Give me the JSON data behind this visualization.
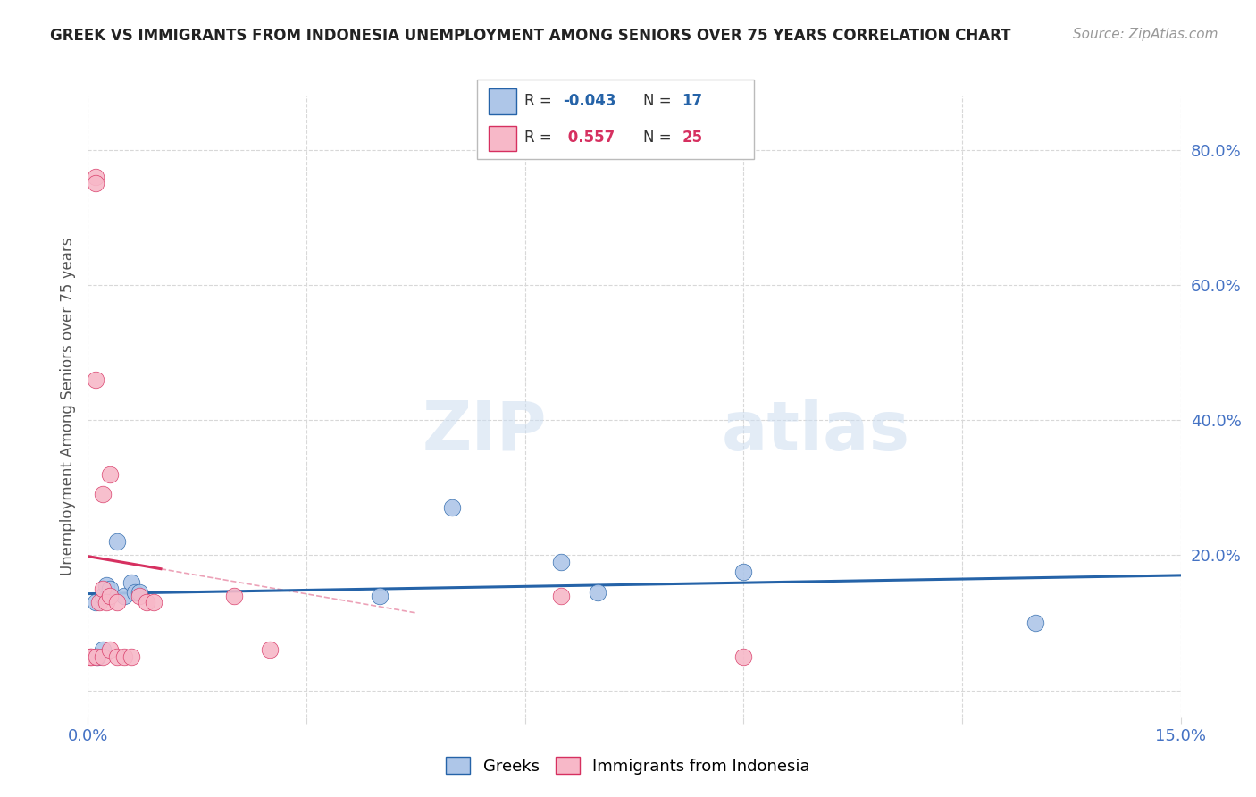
{
  "title": "GREEK VS IMMIGRANTS FROM INDONESIA UNEMPLOYMENT AMONG SENIORS OVER 75 YEARS CORRELATION CHART",
  "source": "Source: ZipAtlas.com",
  "ylabel": "Unemployment Among Seniors over 75 years",
  "background_color": "#ffffff",
  "watermark_zip": "ZIP",
  "watermark_atlas": "atlas",
  "greek_color": "#aec6e8",
  "greek_color_line": "#2563a8",
  "indonesia_color": "#f7b8c8",
  "indonesia_color_line": "#d63060",
  "R_greek": "-0.043",
  "N_greek": "17",
  "R_indonesia": "0.557",
  "N_indonesia": "25",
  "xlim": [
    0.0,
    0.15
  ],
  "ylim": [
    -0.04,
    0.88
  ],
  "ytick_vals": [
    0.0,
    0.2,
    0.4,
    0.6,
    0.8
  ],
  "ytick_labels": [
    "",
    "20.0%",
    "40.0%",
    "60.0%",
    "80.0%"
  ],
  "xtick_vals": [
    0.0,
    0.03,
    0.06,
    0.09,
    0.12,
    0.15
  ],
  "greek_x": [
    0.001,
    0.0013,
    0.002,
    0.002,
    0.0025,
    0.003,
    0.004,
    0.005,
    0.006,
    0.0065,
    0.007,
    0.04,
    0.05,
    0.065,
    0.07,
    0.09,
    0.13
  ],
  "greek_y": [
    0.13,
    0.05,
    0.06,
    0.14,
    0.155,
    0.15,
    0.22,
    0.14,
    0.16,
    0.145,
    0.145,
    0.14,
    0.27,
    0.19,
    0.145,
    0.175,
    0.1
  ],
  "indonesia_x": [
    0.0003,
    0.0005,
    0.001,
    0.001,
    0.001,
    0.0012,
    0.0015,
    0.002,
    0.002,
    0.002,
    0.0025,
    0.003,
    0.003,
    0.003,
    0.004,
    0.004,
    0.005,
    0.006,
    0.007,
    0.008,
    0.009,
    0.02,
    0.025,
    0.065,
    0.09
  ],
  "indonesia_y": [
    0.05,
    0.05,
    0.76,
    0.75,
    0.46,
    0.05,
    0.13,
    0.15,
    0.29,
    0.05,
    0.13,
    0.06,
    0.14,
    0.32,
    0.13,
    0.05,
    0.05,
    0.05,
    0.14,
    0.13,
    0.13,
    0.14,
    0.06,
    0.14,
    0.05
  ],
  "tick_color": "#4472c4",
  "grid_color": "#d8d8d8",
  "ylabel_color": "#555555",
  "title_color": "#222222",
  "source_color": "#999999"
}
